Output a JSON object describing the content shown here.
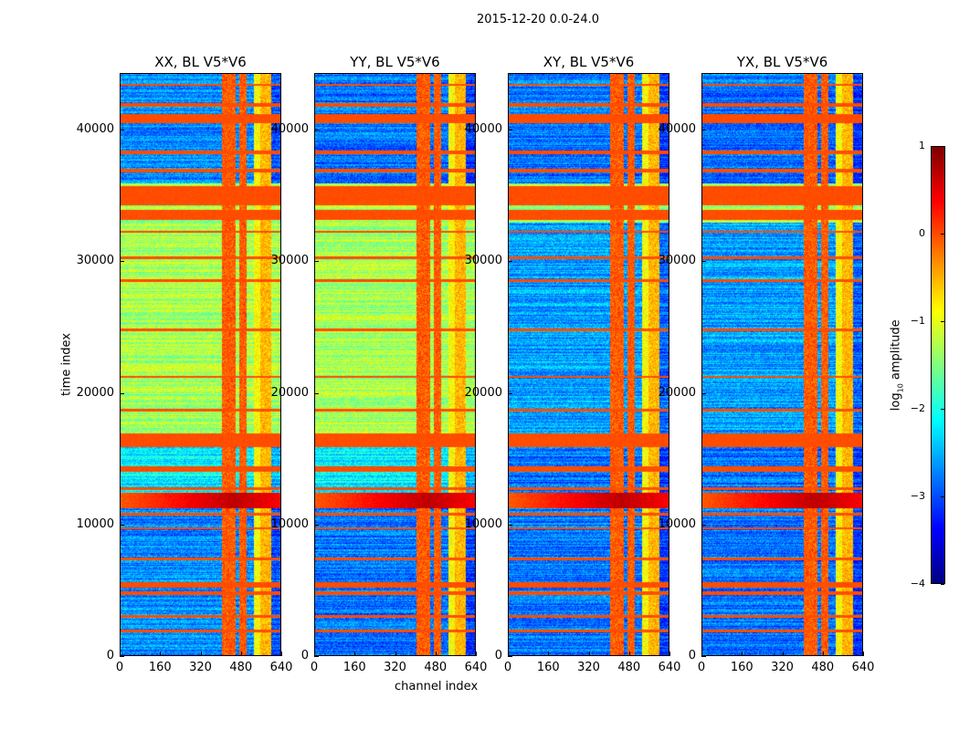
{
  "figure": {
    "suptitle": "2015-12-20 0.0-24.0"
  },
  "chart_data": {
    "type": "heatmap",
    "title": "2015-12-20 0.0-24.0",
    "xlabel": "channel index",
    "ylabel": "time index",
    "xlim": [
      0,
      640
    ],
    "ylim": [
      0,
      44300
    ],
    "xticks": [
      0,
      160,
      320,
      480,
      640
    ],
    "yticks": [
      0,
      10000,
      20000,
      30000,
      40000
    ],
    "colormap": "jet",
    "colorbar": {
      "label_main": "log",
      "label_sub": "10",
      "label_rest": " amplitude",
      "range": [
        -4,
        1
      ],
      "ticks": [
        "1",
        "0",
        "−1",
        "−2",
        "−3",
        "−4"
      ],
      "tick_values": [
        1,
        0,
        -1,
        -2,
        -3,
        -4
      ]
    },
    "channel_bands": [
      [
        405,
        459,
        1.9
      ],
      [
        474,
        503,
        1.9
      ],
      [
        531,
        557,
        1.0
      ],
      [
        557,
        600,
        1.4
      ]
    ],
    "stripes": [
      [
        1800,
        2000,
        0
      ],
      [
        2900,
        3100,
        0
      ],
      [
        4600,
        4900,
        0
      ],
      [
        5200,
        5600,
        0
      ],
      [
        7300,
        7500,
        0
      ],
      [
        9600,
        9800,
        0
      ],
      [
        10700,
        10900,
        0
      ],
      [
        11200,
        12400,
        0.6
      ],
      [
        12600,
        12800,
        0
      ],
      [
        14000,
        14400,
        0
      ],
      [
        15900,
        16900,
        0
      ],
      [
        18600,
        18800,
        0
      ],
      [
        21200,
        21300,
        0
      ],
      [
        24700,
        24900,
        0
      ],
      [
        28500,
        28700,
        0
      ],
      [
        30200,
        30400,
        0
      ],
      [
        32200,
        32400,
        0
      ],
      [
        33200,
        34000,
        0
      ],
      [
        34300,
        35800,
        0
      ],
      [
        36800,
        37100,
        0
      ],
      [
        38200,
        38500,
        0
      ],
      [
        40600,
        41300,
        0
      ],
      [
        41800,
        42100,
        0
      ],
      [
        43400,
        43600,
        0
      ]
    ],
    "panels": [
      {
        "title": "XX, BL V5*V6",
        "regions": [
          [
            0,
            11000,
            -2.7
          ],
          [
            12400,
            16500,
            -2.2
          ],
          [
            16500,
            33000,
            -1.3
          ],
          [
            33000,
            36000,
            -1.3
          ],
          [
            36000,
            44300,
            -2.7
          ]
        ]
      },
      {
        "title": "YY, BL V5*V6",
        "regions": [
          [
            0,
            11000,
            -2.8
          ],
          [
            12400,
            16500,
            -2.2
          ],
          [
            16500,
            33000,
            -1.3
          ],
          [
            33000,
            36000,
            -1.3
          ],
          [
            36000,
            44300,
            -2.8
          ]
        ]
      },
      {
        "title": "XY, BL V5*V6",
        "regions": [
          [
            0,
            11000,
            -2.8
          ],
          [
            12400,
            16500,
            -2.8
          ],
          [
            16500,
            33000,
            -2.6
          ],
          [
            33000,
            36000,
            -1.3
          ],
          [
            36000,
            44300,
            -2.8
          ]
        ]
      },
      {
        "title": "YX, BL V5*V6",
        "regions": [
          [
            0,
            11000,
            -2.8
          ],
          [
            12400,
            16500,
            -2.8
          ],
          [
            16500,
            33000,
            -2.6
          ],
          [
            33000,
            36000,
            -1.3
          ],
          [
            36000,
            44300,
            -2.8
          ]
        ]
      }
    ]
  }
}
